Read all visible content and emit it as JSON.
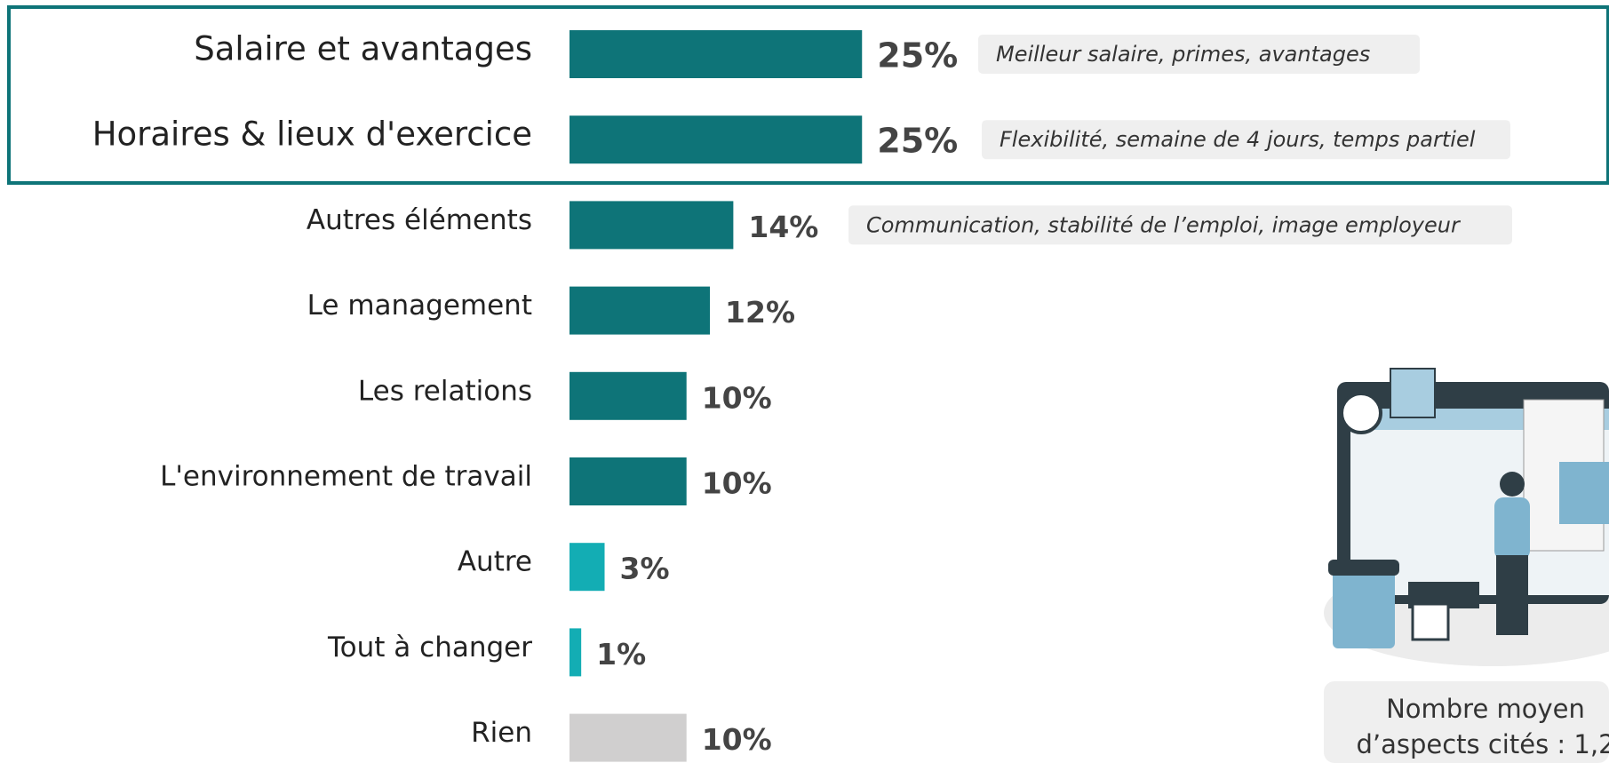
{
  "chart_data": {
    "type": "bar",
    "orientation": "horizontal",
    "categories": [
      "Salaire et avantages",
      "Horaires & lieux d'exercice",
      "Autres éléments",
      "Le management",
      "Les relations",
      "L'environnement de travail",
      "Autre",
      "Tout à changer",
      "Rien"
    ],
    "values": [
      25,
      25,
      14,
      12,
      10,
      10,
      3,
      1,
      10
    ],
    "value_labels": [
      "25%",
      "25%",
      "14%",
      "12%",
      "10%",
      "10%",
      "3%",
      "1%",
      "10%"
    ],
    "colors": [
      "#0e7478",
      "#0e7478",
      "#0e7478",
      "#0e7478",
      "#0e7478",
      "#0e7478",
      "#13adb4",
      "#13adb4",
      "#d0cfcf"
    ],
    "annotations": [
      "Meilleur salaire, primes, avantages",
      "Flexibilité, semaine de 4 jours, temps partiel",
      "Communication, stabilité de l’emploi, image employeur",
      null,
      null,
      null,
      null,
      null,
      null
    ],
    "note": [
      "Nombre moyen",
      "d’aspects cités : 1,2"
    ]
  }
}
